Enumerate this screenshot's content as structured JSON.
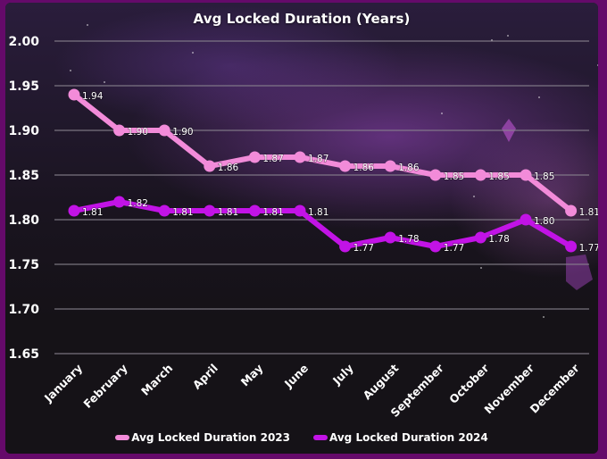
{
  "chart_data": {
    "type": "line",
    "title": "Avg Locked Duration (Years)",
    "xlabel": "",
    "ylabel": "",
    "categories": [
      "January",
      "February",
      "March",
      "April",
      "May",
      "June",
      "July",
      "August",
      "September",
      "October",
      "November",
      "December"
    ],
    "ylim": [
      1.65,
      2.0
    ],
    "yticks": [
      "1.65",
      "1.70",
      "1.75",
      "1.80",
      "1.85",
      "1.90",
      "1.95",
      "2.00"
    ],
    "grid": true,
    "legend_position": "bottom",
    "series": [
      {
        "name": "Avg Locked Duration 2023",
        "color": "#f28bd9",
        "values": [
          1.94,
          1.9,
          1.9,
          1.86,
          1.87,
          1.87,
          1.86,
          1.86,
          1.85,
          1.85,
          1.85,
          1.81
        ],
        "labels": [
          "1.94",
          "1.90",
          "1.90",
          "1.86",
          "1.87",
          "1.87",
          "1.86",
          "1.86",
          "1.85",
          "1.85",
          "1.85",
          "1.81"
        ]
      },
      {
        "name": "Avg Locked Duration 2024",
        "color": "#c213e6",
        "values": [
          1.81,
          1.82,
          1.81,
          1.81,
          1.81,
          1.81,
          1.77,
          1.78,
          1.77,
          1.78,
          1.8,
          1.77
        ],
        "labels": [
          "1.81",
          "1.82",
          "1.81",
          "1.81",
          "1.81",
          "1.81",
          "1.77",
          "1.78",
          "1.77",
          "1.78",
          "1.80",
          "1.77"
        ]
      }
    ]
  },
  "colors": {
    "border": "#650a6a",
    "panel": "#151217",
    "grid": "#8a8590",
    "text": "#ffffff"
  }
}
